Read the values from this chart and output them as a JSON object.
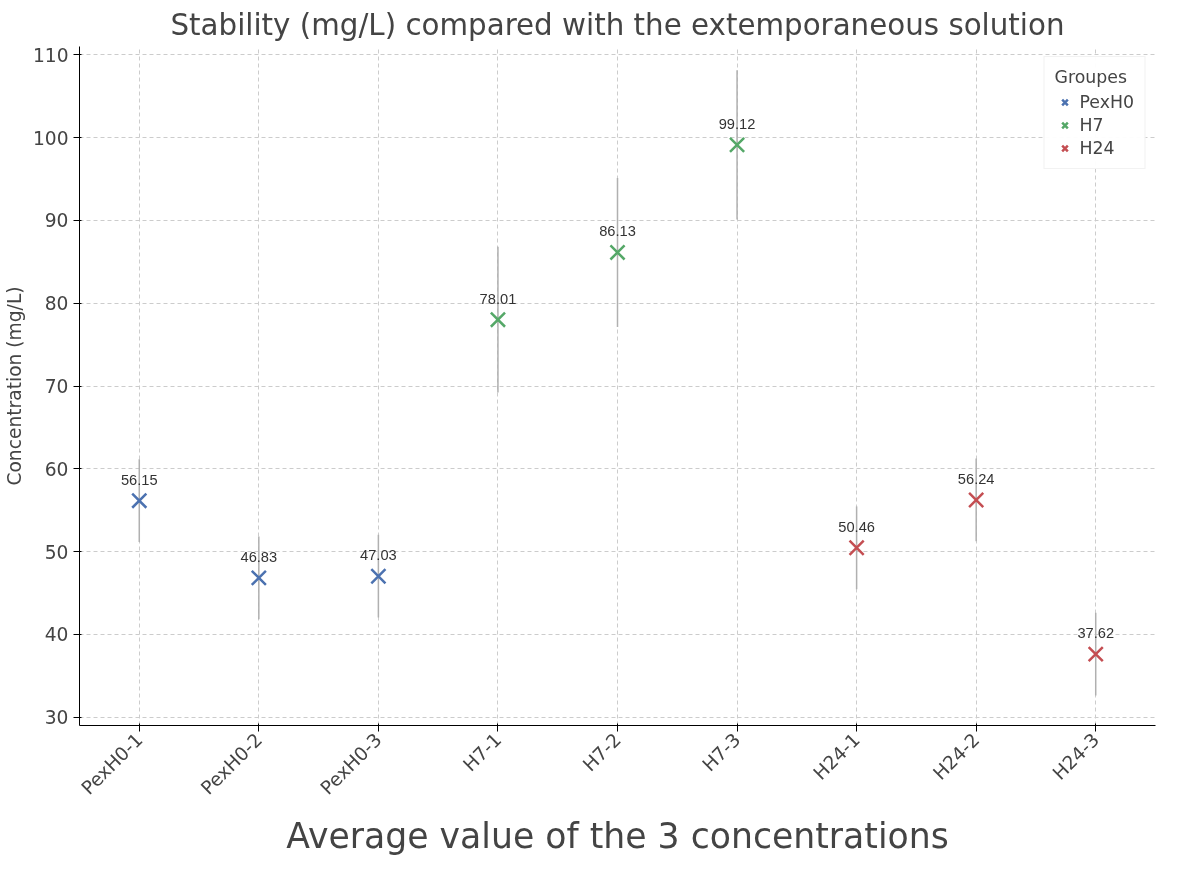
{
  "chart_data": {
    "type": "scatter",
    "title": "Stability (mg/L) compared with the extemporaneous solution",
    "ylabel": "Concentration (mg/L)",
    "legend_title": "Groupes",
    "categories": [
      "PexH0-1",
      "PexH0-2",
      "PexH0-3",
      "H7-1",
      "H7-2",
      "H7-3",
      "H24-1",
      "H24-2",
      "H24-3"
    ],
    "series": [
      {
        "name": "PexH0",
        "color": "#4c72b0",
        "values": [
          56.15,
          46.83,
          47.03,
          null,
          null,
          null,
          null,
          null,
          null
        ],
        "errors": [
          5,
          5,
          5,
          null,
          null,
          null,
          null,
          null,
          null
        ]
      },
      {
        "name": "H7",
        "color": "#55a868",
        "values": [
          null,
          null,
          null,
          78.01,
          86.13,
          99.12,
          null,
          null,
          null
        ],
        "errors": [
          null,
          null,
          null,
          8.8,
          9,
          9,
          null,
          null,
          null
        ]
      },
      {
        "name": "H24",
        "color": "#c44e52",
        "values": [
          null,
          null,
          null,
          null,
          null,
          null,
          50.46,
          56.24,
          37.62
        ],
        "errors": [
          null,
          null,
          null,
          null,
          null,
          null,
          5,
          5,
          5
        ]
      }
    ],
    "ylim": [
      29,
      111
    ],
    "yticks": [
      30,
      40,
      50,
      60,
      70,
      80,
      90,
      100,
      110
    ],
    "grid": true,
    "legend": "top right",
    "marker": "cross",
    "data_labels": true,
    "annotations": [
      "Average value of the 3 concentrations"
    ]
  }
}
